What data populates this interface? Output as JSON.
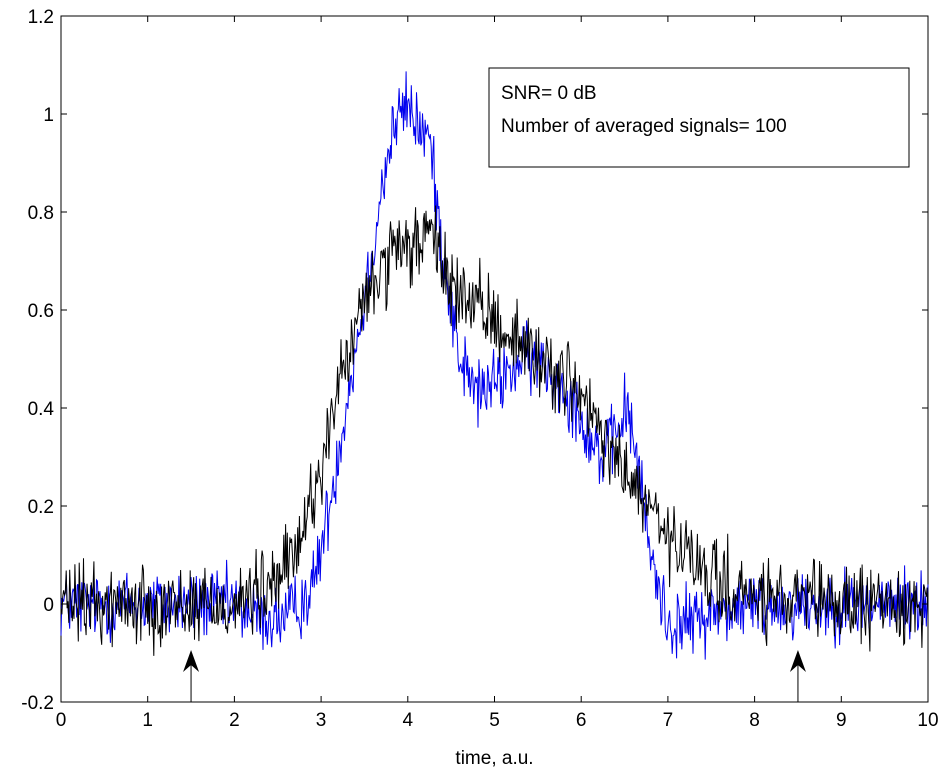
{
  "chart_data": {
    "type": "line",
    "title": "",
    "xlabel": "time, a.u.",
    "ylabel": "",
    "xlim": [
      0,
      10
    ],
    "ylim": [
      -0.2,
      1.2
    ],
    "x_ticks": [
      0,
      1,
      2,
      3,
      4,
      5,
      6,
      7,
      8,
      9,
      10
    ],
    "x_tick_labels": [
      "0",
      "1",
      "2",
      "3",
      "4",
      "5",
      "6",
      "7",
      "8",
      "9",
      "10"
    ],
    "y_ticks": [
      -0.2,
      0,
      0.2,
      0.4,
      0.6,
      0.8,
      1,
      1.2
    ],
    "y_tick_labels": [
      "-0.2",
      "0",
      "0.2",
      "0.4",
      "0.6",
      "0.8",
      "1",
      "1.2"
    ],
    "grid": false,
    "annotation_box": {
      "placement": "top-right",
      "lines": [
        "SNR= 0 dB",
        "Number of averaged signals= 100"
      ]
    },
    "series": [
      {
        "color": "#0000ee",
        "noise_amplitude": 0.035,
        "x": [
          0,
          1.5,
          2.0,
          2.3,
          2.6,
          2.9,
          3.1,
          3.3,
          3.5,
          3.7,
          3.85,
          4.0,
          4.1,
          4.25,
          4.4,
          4.6,
          4.8,
          5.0,
          5.2,
          5.4,
          5.5,
          5.7,
          5.9,
          6.1,
          6.25,
          6.4,
          6.5,
          6.6,
          6.8,
          7.0,
          7.2,
          7.5,
          8.0,
          8.5,
          9.0,
          9.5,
          10.0
        ],
        "y": [
          0,
          0,
          0,
          -0.03,
          -0.03,
          0.03,
          0.2,
          0.42,
          0.62,
          0.85,
          0.98,
          1.02,
          0.98,
          0.95,
          0.72,
          0.5,
          0.43,
          0.45,
          0.48,
          0.5,
          0.5,
          0.46,
          0.42,
          0.34,
          0.3,
          0.34,
          0.4,
          0.35,
          0.1,
          -0.04,
          -0.04,
          -0.02,
          0,
          0,
          0,
          0,
          0
        ]
      },
      {
        "color": "#000000",
        "noise_amplitude": 0.04,
        "x": [
          0,
          1.5,
          2.0,
          2.4,
          2.7,
          3.0,
          3.2,
          3.4,
          3.6,
          3.8,
          4.0,
          4.2,
          4.3,
          4.5,
          4.8,
          5.0,
          5.3,
          5.6,
          5.9,
          6.2,
          6.5,
          6.8,
          7.0,
          7.3,
          7.6,
          8.0,
          8.5,
          9.0,
          10.0
        ],
        "y": [
          0,
          0,
          0,
          0.03,
          0.1,
          0.28,
          0.44,
          0.56,
          0.66,
          0.7,
          0.72,
          0.75,
          0.74,
          0.65,
          0.6,
          0.58,
          0.53,
          0.49,
          0.45,
          0.35,
          0.27,
          0.19,
          0.13,
          0.08,
          0.04,
          0.01,
          0,
          0,
          0
        ]
      }
    ],
    "markers": [
      {
        "x": 1.5,
        "y_from": -0.2,
        "y_to": -0.1,
        "color": "#000000"
      },
      {
        "x": 8.5,
        "y_from": -0.2,
        "y_to": -0.1,
        "color": "#000000"
      }
    ]
  }
}
